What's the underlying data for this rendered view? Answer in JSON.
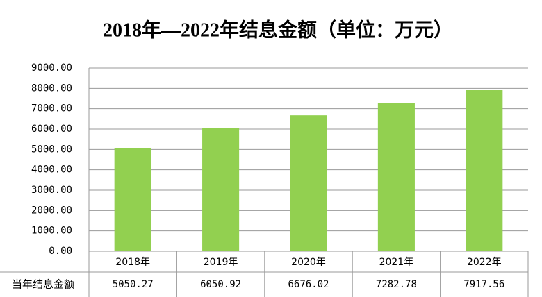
{
  "chart_data": {
    "type": "bar",
    "title": "2018年—2022年结息金额（单位：万元）",
    "categories": [
      "2018年",
      "2019年",
      "2020年",
      "2021年",
      "2022年"
    ],
    "series": [
      {
        "name": "当年结息金额",
        "color": "#92d050",
        "values": [
          5050.27,
          6050.92,
          6676.02,
          7282.78,
          7917.56
        ]
      }
    ],
    "ylim": [
      0,
      9000
    ],
    "yticks": [
      {
        "value": 0,
        "label": "0.00"
      },
      {
        "value": 1000,
        "label": "1000.00"
      },
      {
        "value": 2000,
        "label": "2000.00"
      },
      {
        "value": 3000,
        "label": "3000.00"
      },
      {
        "value": 4000,
        "label": "4000.00"
      },
      {
        "value": 5000,
        "label": "5000.00"
      },
      {
        "value": 6000,
        "label": "6000.00"
      },
      {
        "value": 7000,
        "label": "7000.00"
      },
      {
        "value": 8000,
        "label": "8000.00"
      },
      {
        "value": 9000,
        "label": "9000.00"
      }
    ],
    "grid": true
  }
}
